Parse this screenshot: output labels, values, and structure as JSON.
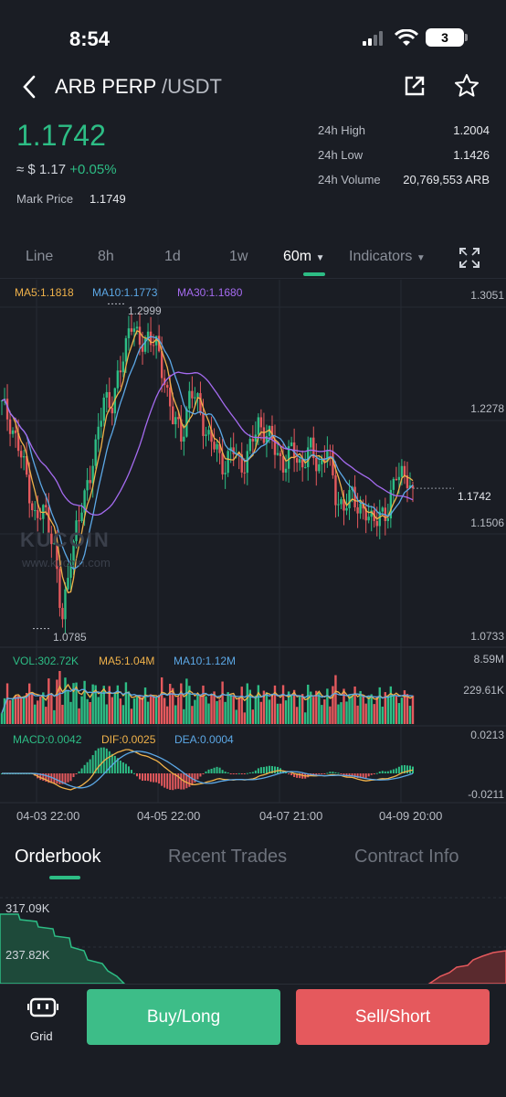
{
  "status": {
    "time": "8:54",
    "battery": "3"
  },
  "header": {
    "base": "ARB PERP",
    "quote": "/USDT"
  },
  "ticker": {
    "last_price": "1.1742",
    "fiat_prefix": "≈ $ 1.17",
    "change": "+0.05%",
    "mark_label": "Mark Price",
    "mark_value": "1.1749",
    "stats": [
      {
        "label": "24h High",
        "value": "1.2004"
      },
      {
        "label": "24h Low",
        "value": "1.1426"
      },
      {
        "label": "24h Volume",
        "value": "20,769,553 ARB"
      }
    ]
  },
  "timeframes": [
    "Line",
    "8h",
    "1d",
    "1w",
    "60m",
    "Indicators"
  ],
  "active_timeframe": "60m",
  "chart": {
    "ma_legend": {
      "ma5": "MA5:1.1818",
      "ma10": "MA10:1.1773",
      "ma30": "MA30:1.1680"
    },
    "price_ticks": [
      "1.3051",
      "1.2278",
      "1.1506",
      "1.0733"
    ],
    "current_price_tag": "1.1742",
    "high_marker": "1.2999",
    "low_marker": "1.0785",
    "watermark": "KUCOIN",
    "watermark_sub": "www.kucoin.com",
    "vol_legend": {
      "vol": "VOL:302.72K",
      "ma5": "MA5:1.04M",
      "ma10": "MA10:1.12M"
    },
    "vol_ticks": [
      "8.59M",
      "229.61K"
    ],
    "macd_legend": {
      "macd": "MACD:0.0042",
      "dif": "DIF:0.0025",
      "dea": "DEA:0.0004"
    },
    "macd_ticks": [
      "0.0213",
      "-0.0211"
    ],
    "x_ticks": [
      "04-03 22:00",
      "04-05 22:00",
      "04-07 21:00",
      "04-09 20:00"
    ]
  },
  "colors": {
    "up": "#2dbd85",
    "down": "#e5595d",
    "ma5": "#f0b24a",
    "ma10": "#5ca8e6",
    "ma30": "#a56bf0",
    "bg": "#1a1d24"
  },
  "sections": [
    "Orderbook",
    "Recent Trades",
    "Contract Info"
  ],
  "active_section": "Orderbook",
  "depth": {
    "labels": [
      "317.09K",
      "237.82K"
    ]
  },
  "actions": {
    "grid": "Grid",
    "buy": "Buy/Long",
    "sell": "Sell/Short"
  },
  "chart_data": {
    "type": "candlestick",
    "x_ticks": [
      "04-03 22:00",
      "04-05 22:00",
      "04-07 21:00",
      "04-09 20:00"
    ],
    "ylim": [
      1.0733,
      1.3051
    ],
    "y_ticks": [
      1.3051,
      1.2278,
      1.1506,
      1.0733
    ],
    "last_price": 1.1742,
    "high": 1.2999,
    "low": 1.0785,
    "series": [
      {
        "name": "MA5",
        "last": 1.1818
      },
      {
        "name": "MA10",
        "last": 1.1773
      },
      {
        "name": "MA30",
        "last": 1.168
      }
    ],
    "price_path": [
      1.23,
      1.22,
      1.2,
      1.18,
      1.15,
      1.16,
      1.14,
      1.08,
      1.13,
      1.15,
      1.18,
      1.2,
      1.24,
      1.23,
      1.26,
      1.29,
      1.27,
      1.28,
      1.27,
      1.25,
      1.22,
      1.21,
      1.24,
      1.23,
      1.21,
      1.2,
      1.19,
      1.2,
      1.19,
      1.2,
      1.22,
      1.21,
      1.2,
      1.19,
      1.2,
      1.19,
      1.2,
      1.19,
      1.2,
      1.17,
      1.16,
      1.17,
      1.16,
      1.15,
      1.16,
      1.15,
      1.19,
      1.18,
      1.17
    ]
  }
}
